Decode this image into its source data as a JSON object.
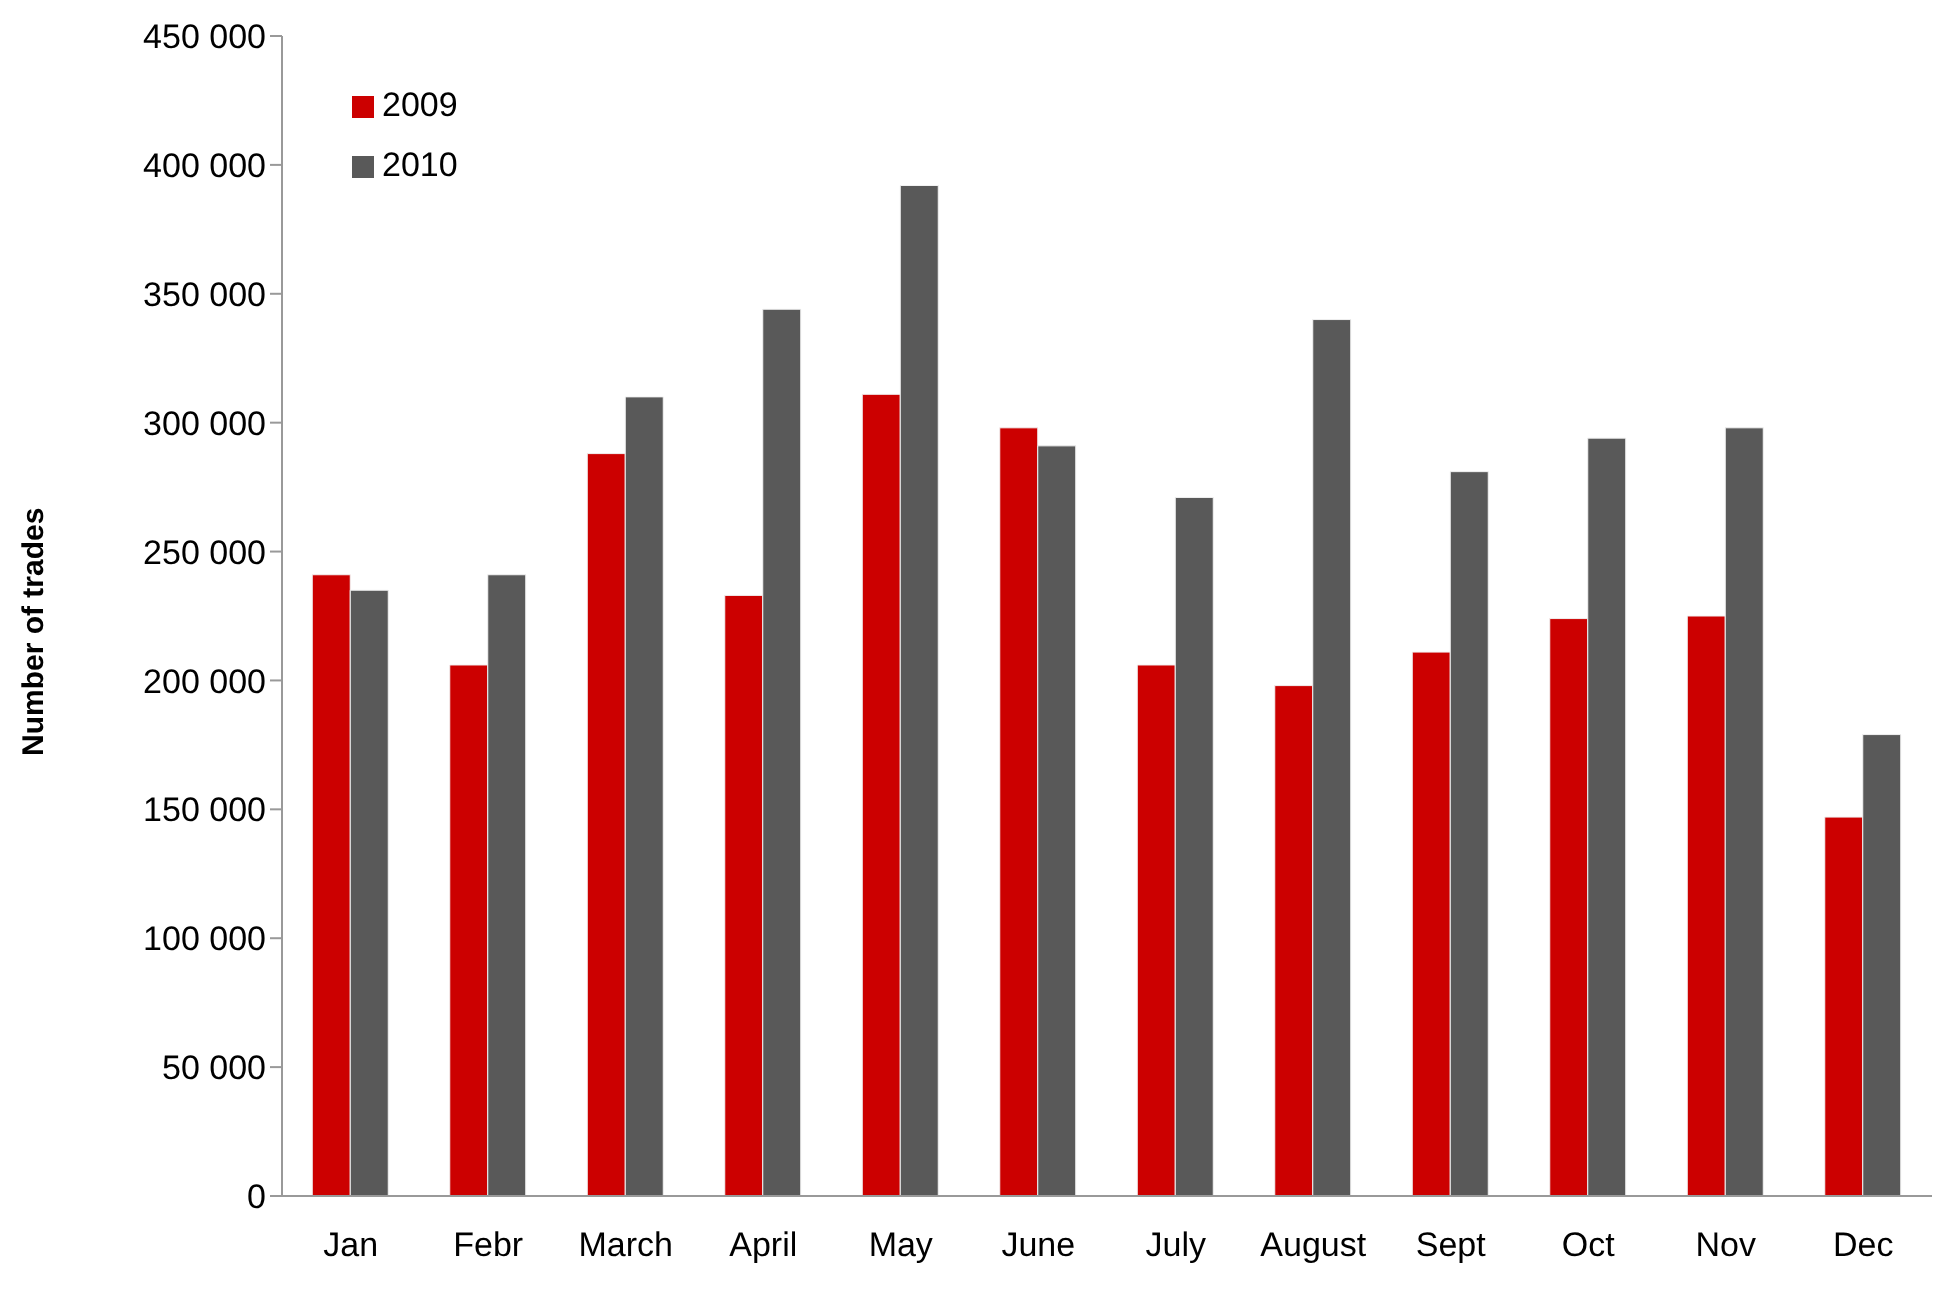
{
  "chart_data": {
    "type": "bar",
    "ylabel": "Number of trades",
    "categories": [
      "Jan",
      "Febr",
      "March",
      "April",
      "May",
      "June",
      "July",
      "August",
      "Sept",
      "Oct",
      "Nov",
      "Dec"
    ],
    "series": [
      {
        "name": "2009",
        "color": "#cc0000",
        "values": [
          241000,
          206000,
          288000,
          233000,
          311000,
          298000,
          206000,
          198000,
          211000,
          224000,
          225000,
          147000
        ]
      },
      {
        "name": "2010",
        "color": "#595959",
        "values": [
          235000,
          241000,
          310000,
          344000,
          392000,
          291000,
          271000,
          340000,
          281000,
          294000,
          298000,
          179000
        ]
      }
    ],
    "ylim": [
      0,
      450000
    ],
    "yticks": [
      {
        "value": 0,
        "label": "0"
      },
      {
        "value": 50000,
        "label": "50 000"
      },
      {
        "value": 100000,
        "label": "100 000"
      },
      {
        "value": 150000,
        "label": "150 000"
      },
      {
        "value": 200000,
        "label": "200 000"
      },
      {
        "value": 250000,
        "label": "250 000"
      },
      {
        "value": 300000,
        "label": "300 000"
      },
      {
        "value": 350000,
        "label": "350 000"
      },
      {
        "value": 400000,
        "label": "400 000"
      },
      {
        "value": 450000,
        "label": "450 000"
      }
    ],
    "grid": false,
    "legend": "top left"
  }
}
